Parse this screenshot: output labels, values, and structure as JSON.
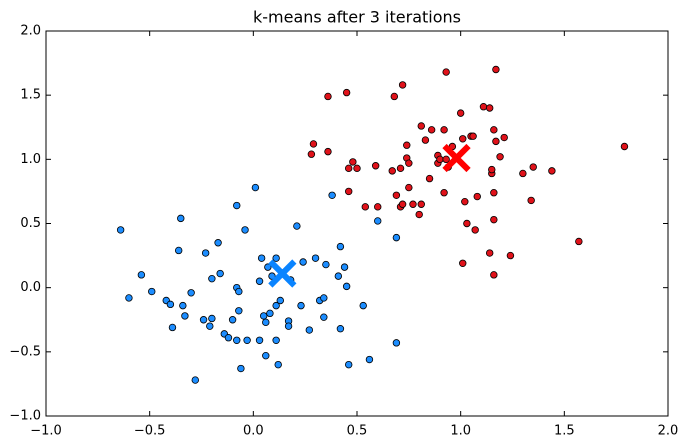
{
  "chart_data": {
    "type": "scatter",
    "title": "k-means after 3 iterations",
    "xlim": [
      -1.0,
      2.0
    ],
    "ylim": [
      -1.0,
      2.0
    ],
    "xticks": [
      {
        "value": -1.0,
        "label": "−1.0"
      },
      {
        "value": -0.5,
        "label": "−0.5"
      },
      {
        "value": 0.0,
        "label": "0.0"
      },
      {
        "value": 0.5,
        "label": "0.5"
      },
      {
        "value": 1.0,
        "label": "1.0"
      },
      {
        "value": 1.5,
        "label": "1.5"
      },
      {
        "value": 2.0,
        "label": "2.0"
      }
    ],
    "yticks": [
      {
        "value": -1.0,
        "label": "−1.0"
      },
      {
        "value": -0.5,
        "label": "−0.5"
      },
      {
        "value": 0.0,
        "label": "0.0"
      },
      {
        "value": 0.5,
        "label": "0.5"
      },
      {
        "value": 1.0,
        "label": "1.0"
      },
      {
        "value": 1.5,
        "label": "1.5"
      },
      {
        "value": 2.0,
        "label": "2.0"
      }
    ],
    "grid": false,
    "series": [
      {
        "color": "#1c8dff",
        "x": [
          -0.64,
          -0.6,
          -0.54,
          -0.49,
          -0.42,
          -0.4,
          -0.39,
          -0.35,
          -0.36,
          -0.34,
          -0.33,
          -0.3,
          -0.28,
          -0.24,
          -0.23,
          -0.21,
          -0.2,
          -0.2,
          -0.17,
          -0.16,
          -0.14,
          -0.12,
          -0.1,
          -0.08,
          -0.08,
          -0.07,
          -0.07,
          -0.08,
          -0.06,
          -0.04,
          -0.03,
          0.01,
          0.03,
          0.03,
          0.04,
          0.05,
          0.06,
          0.06,
          0.07,
          0.08,
          0.09,
          0.11,
          0.11,
          0.11,
          0.12,
          0.13,
          0.17,
          0.17,
          0.18,
          0.21,
          0.23,
          0.24,
          0.27,
          0.3,
          0.32,
          0.34,
          0.35,
          0.34,
          0.38,
          0.41,
          0.42,
          0.42,
          0.44,
          0.45,
          0.46,
          0.53,
          0.56,
          0.6,
          0.69,
          0.69
        ],
        "y": [
          0.45,
          -0.08,
          0.1,
          -0.03,
          -0.1,
          -0.13,
          -0.31,
          0.54,
          0.29,
          -0.14,
          -0.22,
          -0.04,
          -0.72,
          -0.25,
          0.27,
          -0.3,
          -0.24,
          0.07,
          0.35,
          0.11,
          -0.36,
          -0.39,
          -0.25,
          0.64,
          0.0,
          -0.18,
          -0.03,
          -0.41,
          -0.63,
          0.45,
          -0.41,
          0.78,
          -0.41,
          0.05,
          0.23,
          -0.22,
          -0.53,
          -0.27,
          0.16,
          -0.2,
          0.09,
          -0.14,
          0.23,
          -0.41,
          -0.6,
          -0.1,
          -0.26,
          -0.3,
          0.06,
          0.48,
          -0.14,
          0.2,
          -0.33,
          0.23,
          -0.1,
          -0.08,
          0.18,
          -0.23,
          0.72,
          0.09,
          -0.32,
          0.32,
          0.16,
          0.01,
          -0.6,
          -0.14,
          -0.56,
          0.52,
          -0.43,
          0.39
        ]
      },
      {
        "color": "#e0121a",
        "x": [
          0.29,
          0.28,
          0.36,
          0.36,
          0.45,
          0.46,
          0.46,
          0.48,
          0.5,
          0.54,
          0.59,
          0.6,
          0.67,
          0.68,
          0.69,
          0.72,
          0.71,
          0.71,
          0.72,
          0.74,
          0.74,
          0.75,
          0.75,
          0.77,
          0.8,
          0.81,
          0.81,
          0.83,
          0.85,
          0.86,
          0.89,
          0.89,
          0.9,
          0.92,
          0.92,
          0.93,
          0.93,
          0.94,
          0.96,
          1.0,
          1.01,
          1.02,
          1.01,
          1.03,
          1.05,
          1.06,
          1.07,
          1.08,
          1.11,
          1.14,
          1.14,
          1.15,
          1.15,
          1.16,
          1.16,
          1.16,
          1.17,
          1.16,
          1.17,
          1.19,
          1.21,
          1.24,
          1.3,
          1.35,
          1.34,
          1.44,
          1.57,
          1.79
        ],
        "y": [
          1.12,
          1.04,
          1.06,
          1.49,
          1.52,
          0.75,
          0.93,
          0.98,
          0.93,
          0.63,
          0.95,
          0.63,
          0.91,
          1.49,
          0.72,
          1.58,
          0.93,
          0.63,
          0.65,
          1.01,
          1.11,
          0.97,
          0.78,
          0.65,
          0.57,
          1.26,
          0.65,
          1.15,
          0.85,
          1.23,
          0.97,
          1.03,
          1.0,
          1.23,
          0.74,
          1.68,
          1.0,
          0.94,
          1.1,
          1.36,
          1.16,
          0.67,
          0.19,
          0.5,
          1.18,
          1.18,
          0.45,
          0.71,
          1.41,
          1.4,
          0.27,
          0.89,
          0.92,
          1.23,
          0.74,
          0.53,
          1.7,
          0.1,
          1.14,
          1.02,
          1.17,
          0.25,
          0.89,
          0.94,
          0.68,
          0.91,
          0.36,
          1.1
        ]
      }
    ],
    "centroids": {
      "x": [
        0.14,
        0.98
      ],
      "y": [
        0.11,
        1.01
      ],
      "colors": [
        "#0a84ff",
        "#ff0000"
      ]
    }
  }
}
